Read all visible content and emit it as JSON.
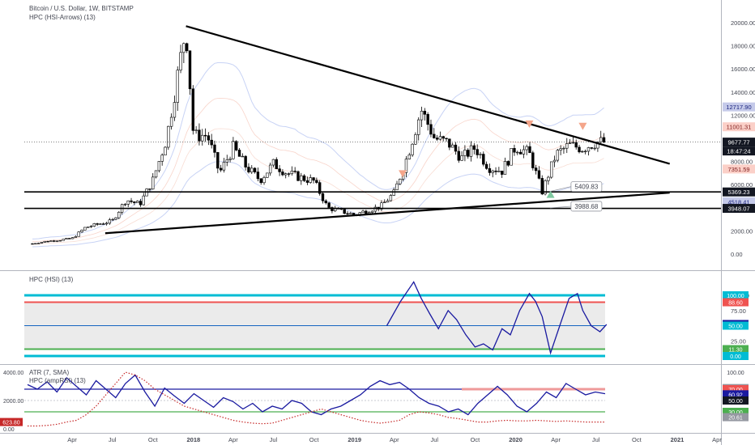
{
  "header": {
    "symbol_line": "Bitcoin / U.S. Dollar, 1W, BITSTAMP",
    "indicator_line": "HPC (HSI-Arrows) (13)"
  },
  "colors": {
    "up_candle": "#ffffff",
    "down_candle": "#000000",
    "trendline": "#000000",
    "hsi_line": "#1a1aa0",
    "cyan_level": "#00bcd4",
    "red_level": "#ef5350",
    "green_level": "#4caf50",
    "blue_level": "#1565c0",
    "arrow_down": "#f4a58a",
    "arrow_up": "#7ec8a0",
    "atr_dots": "#c62828"
  },
  "chart_data": [
    {
      "type": "candlestick",
      "pane": "price",
      "y_ticks": [
        "20000.00",
        "18000.00",
        "16000.00",
        "14000.00",
        "12000.00",
        "8000.00",
        "6000.00",
        "2000.00",
        "0.00"
      ],
      "x_ticks": [
        "Apr",
        "Jul",
        "Oct",
        "2018",
        "Apr",
        "Jul",
        "Oct",
        "2019",
        "Apr",
        "Jul",
        "Oct",
        "2020",
        "Apr",
        "Jul",
        "Oct",
        "2021",
        "Apr"
      ],
      "close_path": [
        [
          "2017-01",
          900
        ],
        [
          "2017-02",
          1100
        ],
        [
          "2017-03",
          1200
        ],
        [
          "2017-04",
          1350
        ],
        [
          "2017-05",
          2300
        ],
        [
          "2017-06",
          2600
        ],
        [
          "2017-07",
          2850
        ],
        [
          "2017-08",
          4700
        ],
        [
          "2017-09",
          4300
        ],
        [
          "2017-10",
          6400
        ],
        [
          "2017-11",
          10000
        ],
        [
          "2017-12-15",
          19600
        ],
        [
          "2018-01",
          10200
        ],
        [
          "2018-02",
          10300
        ],
        [
          "2018-03",
          7000
        ],
        [
          "2018-04",
          9200
        ],
        [
          "2018-05",
          7500
        ],
        [
          "2018-06",
          6400
        ],
        [
          "2018-07",
          7800
        ],
        [
          "2018-08",
          7000
        ],
        [
          "2018-09",
          6600
        ],
        [
          "2018-10",
          6300
        ],
        [
          "2018-11",
          4000
        ],
        [
          "2018-12",
          3700
        ],
        [
          "2019-01",
          3400
        ],
        [
          "2019-02",
          3800
        ],
        [
          "2019-03",
          4100
        ],
        [
          "2019-04",
          5300
        ],
        [
          "2019-05",
          8500
        ],
        [
          "2019-06",
          12500
        ],
        [
          "2019-07",
          10000
        ],
        [
          "2019-08",
          9600
        ],
        [
          "2019-09",
          8300
        ],
        [
          "2019-10",
          9200
        ],
        [
          "2019-11",
          7500
        ],
        [
          "2019-12",
          7200
        ],
        [
          "2020-01",
          9300
        ],
        [
          "2020-02",
          8700
        ],
        [
          "2020-03",
          5400
        ],
        [
          "2020-04",
          8600
        ],
        [
          "2020-05",
          9400
        ],
        [
          "2020-06",
          9150
        ],
        [
          "2020-07",
          9677
        ]
      ],
      "price_labels": [
        {
          "value": 12717.9,
          "text": "12717.90",
          "kind": "upper-band"
        },
        {
          "value": 11001.31,
          "text": "11001.31",
          "kind": "mid-band"
        },
        {
          "value": 9677.77,
          "text": "9677.77",
          "kind": "last-price"
        },
        {
          "value": 0,
          "text": "18:47:24",
          "kind": "countdown"
        },
        {
          "value": 7351.59,
          "text": "7351.59",
          "kind": "mid-band-low"
        },
        {
          "value": 5369.23,
          "text": "5369.23",
          "kind": "horizontal"
        },
        {
          "value": 4518.41,
          "text": "4518.41",
          "kind": "lower-band"
        },
        {
          "value": 3948.07,
          "text": "3948.07",
          "kind": "horizontal"
        }
      ],
      "callouts": [
        {
          "text": "5409.83",
          "date": "2020-03-15",
          "value": 5409.83
        },
        {
          "text": "3988.68",
          "date": "2020-03-15",
          "value": 3988.68
        }
      ],
      "horizontal_lines": [
        5369.23,
        3948.07
      ],
      "trendlines": [
        {
          "from": [
            "2017-12-15",
            19700
          ],
          "to": [
            "2020-12-15",
            7800
          ]
        },
        {
          "from": [
            "2017-06-15",
            1800
          ],
          "to": [
            "2020-12-15",
            5300
          ]
        }
      ],
      "arrows": [
        {
          "date": "2019-04-20",
          "value": 6900,
          "dir": "down"
        },
        {
          "date": "2020-02-01",
          "value": 11200,
          "dir": "down"
        },
        {
          "date": "2020-03-20",
          "value": 5200,
          "dir": "up"
        },
        {
          "date": "2020-06-01",
          "value": 11000,
          "dir": "down"
        }
      ]
    },
    {
      "type": "line",
      "pane": "hsi",
      "title": "HPC (HSI) (13)",
      "ylim": [
        0,
        100
      ],
      "y_ticks": [
        "100.00",
        "75.00",
        "50.00",
        "25.00",
        "0.00"
      ],
      "level_labels": [
        "100.00",
        "88.60",
        "52.70",
        "50.00",
        "11.30",
        "0.00"
      ],
      "levels": [
        {
          "value": 100,
          "color": "cyan"
        },
        {
          "value": 88.6,
          "color": "red"
        },
        {
          "value": 50,
          "color": "blue"
        },
        {
          "value": 11.3,
          "color": "green"
        },
        {
          "value": 0,
          "color": "cyan"
        }
      ],
      "series": [
        {
          "x": [
            "2019-03-15",
            "2019-04-15",
            "2019-05-15",
            "2019-06-01",
            "2019-06-20",
            "2019-07-10",
            "2019-08-01",
            "2019-08-20",
            "2019-09-10",
            "2019-10-01",
            "2019-10-20",
            "2019-11-10",
            "2019-12-01",
            "2019-12-20",
            "2020-01-10",
            "2020-02-01",
            "2020-02-15",
            "2020-03-01",
            "2020-03-20",
            "2020-04-10",
            "2020-05-01",
            "2020-05-20",
            "2020-06-01",
            "2020-06-20",
            "2020-07-10",
            "2020-07-25"
          ],
          "y": [
            50,
            90,
            122,
            95,
            70,
            45,
            75,
            60,
            35,
            15,
            20,
            10,
            45,
            35,
            75,
            103,
            90,
            65,
            5,
            50,
            95,
            103,
            75,
            50,
            40,
            52
          ]
        }
      ]
    },
    {
      "type": "line",
      "pane": "atr",
      "title": "ATR (7, SMA)",
      "subtitle": "HPC (ampRSI) (13)",
      "y_ticks": [
        "4000.00",
        "2000.00",
        "0.00"
      ],
      "right_ticks": [
        "100.00",
        "71.92",
        "70.00",
        "60.92",
        "50.00",
        "30.00",
        "20.61"
      ],
      "left_badge": "623.80",
      "x_ticks": [
        "Apr",
        "Jul",
        "Oct",
        "2018",
        "Apr",
        "Jul",
        "Oct",
        "2019",
        "Apr",
        "Jul",
        "Oct",
        "2020",
        "Apr",
        "Jul",
        "Oct",
        "2021",
        "Apr"
      ],
      "series": [
        {
          "kind": "ampRSI",
          "y": [
            78,
            70,
            83,
            65,
            90,
            75,
            60,
            85,
            70,
            55,
            80,
            95,
            65,
            40,
            72,
            58,
            45,
            62,
            50,
            38,
            55,
            48,
            35,
            45,
            30,
            40,
            35,
            50,
            45,
            30,
            25,
            35,
            40,
            50,
            60,
            75,
            85,
            78,
            82,
            70,
            55,
            45,
            40,
            30,
            35,
            25,
            45,
            60,
            75,
            60,
            40,
            30,
            45,
            65,
            55,
            80,
            70,
            60,
            65,
            62
          ]
        },
        {
          "kind": "ATR",
          "y": [
            5,
            5,
            6,
            8,
            12,
            15,
            25,
            40,
            60,
            80,
            100,
            95,
            85,
            70,
            60,
            50,
            40,
            35,
            30,
            25,
            20,
            15,
            12,
            10,
            9,
            10,
            15,
            20,
            25,
            30,
            35,
            30,
            25,
            20,
            15,
            12,
            10,
            12,
            15,
            25,
            30,
            28,
            25,
            20,
            18,
            15,
            12,
            12,
            14,
            15,
            14,
            14,
            15,
            14,
            13,
            14,
            13,
            12,
            12,
            12
          ]
        }
      ]
    }
  ]
}
